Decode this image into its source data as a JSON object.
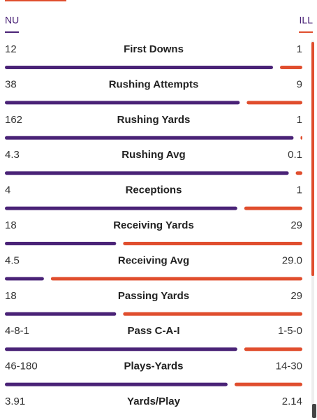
{
  "header": {
    "left_team": "NU",
    "right_team": "ILL"
  },
  "rows": [
    {
      "label": "First Downs",
      "left": "12",
      "right": "1"
    },
    {
      "label": "Rushing Attempts",
      "left": "38",
      "right": "9"
    },
    {
      "label": "Rushing Yards",
      "left": "162",
      "right": "1"
    },
    {
      "label": "Rushing Avg",
      "left": "4.3",
      "right": "0.1"
    },
    {
      "label": "Receptions",
      "left": "4",
      "right": "1"
    },
    {
      "label": "Receiving Yards",
      "left": "18",
      "right": "29"
    },
    {
      "label": "Receiving Avg",
      "left": "4.5",
      "right": "29.0"
    },
    {
      "label": "Passing Yards",
      "left": "18",
      "right": "29"
    },
    {
      "label": "Pass C-A-I",
      "left": "4-8-1",
      "right": "1-5-0"
    },
    {
      "label": "Plays-Yards",
      "left": "46-180",
      "right": "14-30"
    },
    {
      "label": "Yards/Play",
      "left": "3.91",
      "right": "2.14"
    }
  ]
}
